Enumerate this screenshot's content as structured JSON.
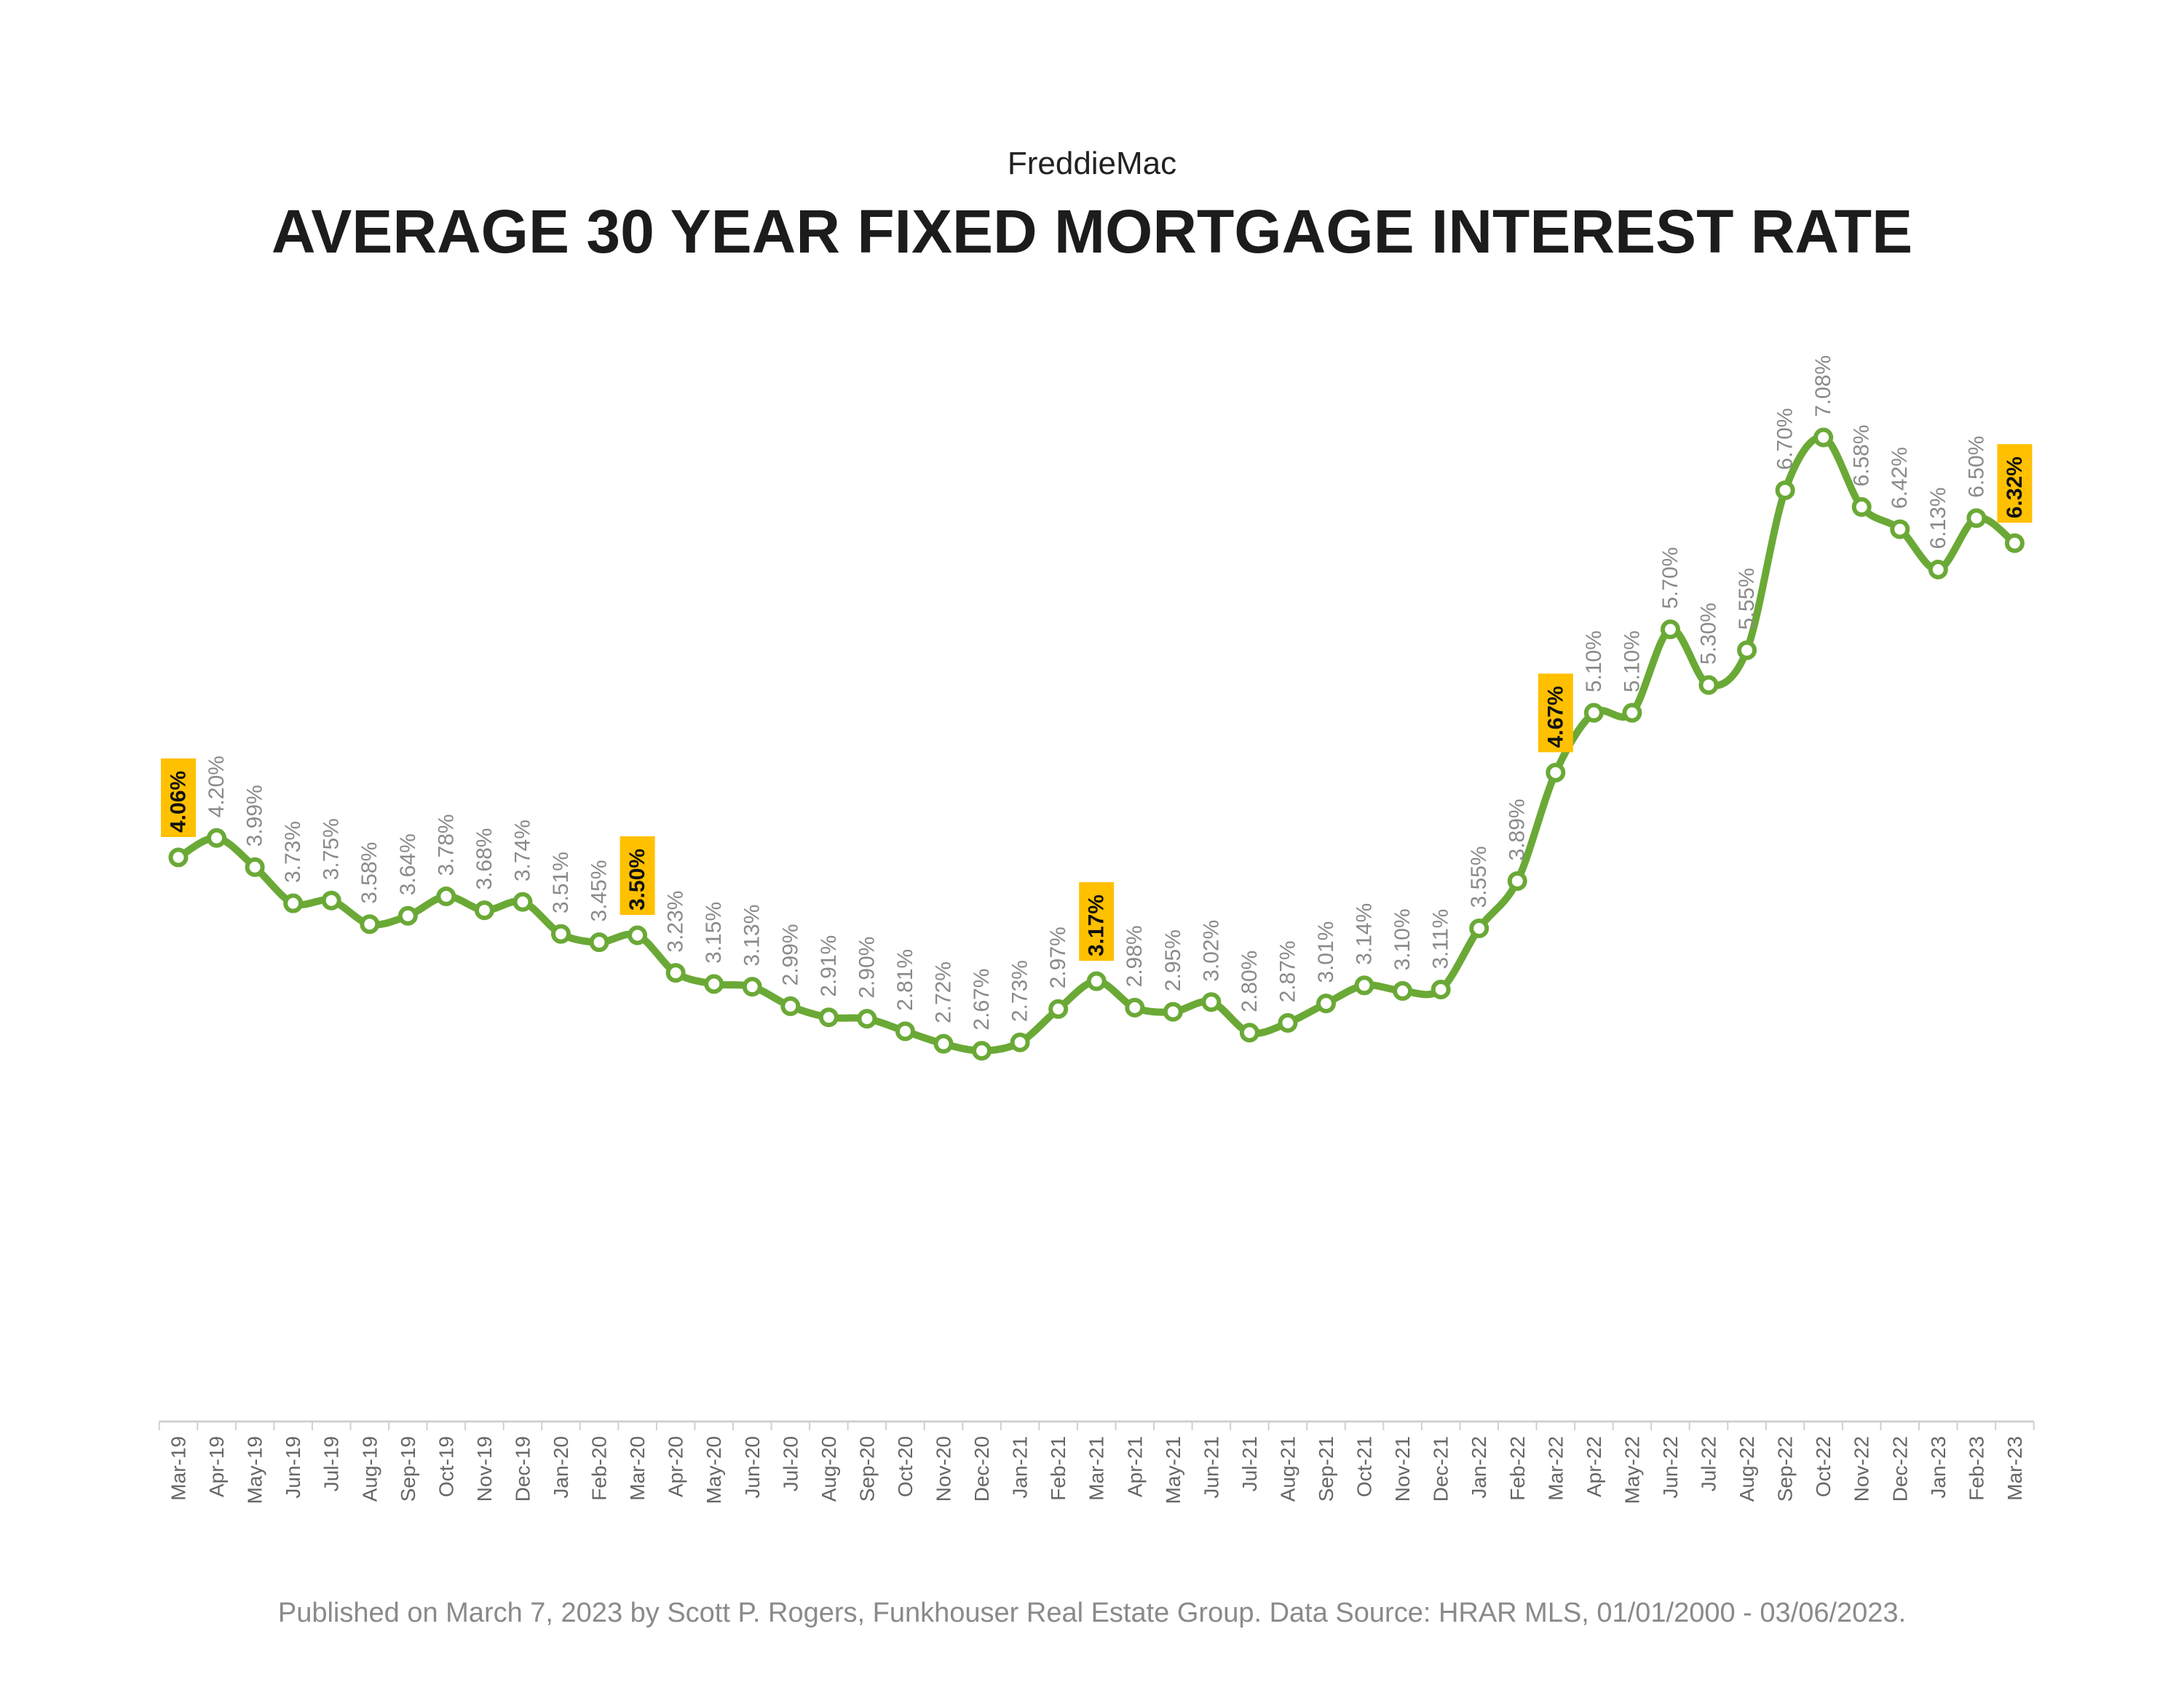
{
  "subtitle": "FreddieMac",
  "title": "AVERAGE 30 YEAR FIXED MORTGAGE INTEREST RATE",
  "footer": "Published on March 7, 2023 by Scott P. Rogers, Funkhouser Real Estate Group. Data Source: HRAR MLS, 01/01/2000 - 03/06/2023.",
  "chart_data": {
    "type": "line",
    "title": "AVERAGE 30 YEAR FIXED MORTGAGE INTEREST RATE",
    "subtitle": "FreddieMac",
    "xlabel": "",
    "ylabel": "",
    "grid": false,
    "legend": "none",
    "line_color": "#6aa936",
    "highlight_color": "#ffc000",
    "categories": [
      "Mar-19",
      "Apr-19",
      "May-19",
      "Jun-19",
      "Jul-19",
      "Aug-19",
      "Sep-19",
      "Oct-19",
      "Nov-19",
      "Dec-19",
      "Jan-20",
      "Feb-20",
      "Mar-20",
      "Apr-20",
      "May-20",
      "Jun-20",
      "Jul-20",
      "Aug-20",
      "Sep-20",
      "Oct-20",
      "Nov-20",
      "Dec-20",
      "Jan-21",
      "Feb-21",
      "Mar-21",
      "Apr-21",
      "May-21",
      "Jun-21",
      "Jul-21",
      "Aug-21",
      "Sep-21",
      "Oct-21",
      "Nov-21",
      "Dec-21",
      "Jan-22",
      "Feb-22",
      "Mar-22",
      "Apr-22",
      "May-22",
      "Jun-22",
      "Jul-22",
      "Aug-22",
      "Sep-22",
      "Oct-22",
      "Nov-22",
      "Dec-22",
      "Jan-23",
      "Feb-23",
      "Mar-23"
    ],
    "values": [
      4.06,
      4.2,
      3.99,
      3.73,
      3.75,
      3.58,
      3.64,
      3.78,
      3.68,
      3.74,
      3.51,
      3.45,
      3.5,
      3.23,
      3.15,
      3.13,
      2.99,
      2.91,
      2.9,
      2.81,
      2.72,
      2.67,
      2.73,
      2.97,
      3.17,
      2.98,
      2.95,
      3.02,
      2.8,
      2.87,
      3.01,
      3.14,
      3.1,
      3.11,
      3.55,
      3.89,
      4.67,
      5.1,
      5.1,
      5.7,
      5.3,
      5.55,
      6.7,
      7.08,
      6.58,
      6.42,
      6.13,
      6.5,
      6.32
    ],
    "data_labels": [
      "4.06%",
      "4.20%",
      "3.99%",
      "3.73%",
      "3.75%",
      "3.58%",
      "3.64%",
      "3.78%",
      "3.68%",
      "3.74%",
      "3.51%",
      "3.45%",
      "3.50%",
      "3.23%",
      "3.15%",
      "3.13%",
      "2.99%",
      "2.91%",
      "2.90%",
      "2.81%",
      "2.72%",
      "2.67%",
      "2.73%",
      "2.97%",
      "3.17%",
      "2.98%",
      "2.95%",
      "3.02%",
      "2.80%",
      "2.87%",
      "3.01%",
      "3.14%",
      "3.10%",
      "3.11%",
      "3.55%",
      "3.89%",
      "4.67%",
      "5.10%",
      "5.10%",
      "5.70%",
      "5.30%",
      "5.55%",
      "6.70%",
      "7.08%",
      "6.58%",
      "6.42%",
      "6.13%",
      "6.50%",
      "6.32%"
    ],
    "highlighted": [
      "Mar-19",
      "Mar-20",
      "Mar-21",
      "Mar-22",
      "Mar-23"
    ]
  }
}
